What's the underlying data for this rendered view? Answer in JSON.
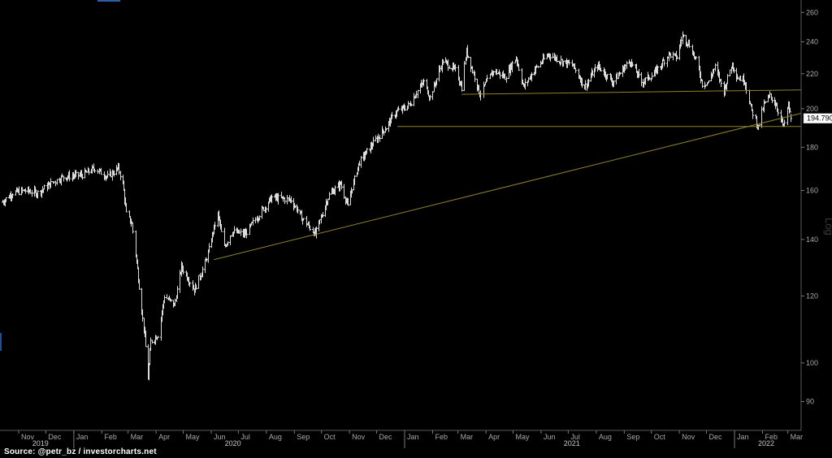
{
  "source_text": "Source: @petr_bz / investorcharts.net",
  "last_value_label": "194.790",
  "scale_label": "Log",
  "chart_data": {
    "type": "ohlc",
    "scale": "log",
    "ylim": [
      86,
      266
    ],
    "y_ticks": [
      90,
      100,
      120,
      140,
      160,
      180,
      200,
      220,
      240,
      260
    ],
    "x_range": [
      "2019-10-14",
      "2022-03-04"
    ],
    "month_ticks": [
      {
        "label": "Nov",
        "date": "2019-11-01"
      },
      {
        "label": "Dec",
        "date": "2019-12-01"
      },
      {
        "label": "Jan",
        "date": "2020-01-01"
      },
      {
        "label": "Feb",
        "date": "2020-02-01"
      },
      {
        "label": "Mar",
        "date": "2020-03-01"
      },
      {
        "label": "Apr",
        "date": "2020-04-01"
      },
      {
        "label": "May",
        "date": "2020-05-01"
      },
      {
        "label": "Jun",
        "date": "2020-06-01"
      },
      {
        "label": "Jul",
        "date": "2020-07-01"
      },
      {
        "label": "Aug",
        "date": "2020-08-01"
      },
      {
        "label": "Sep",
        "date": "2020-09-01"
      },
      {
        "label": "Oct",
        "date": "2020-10-01"
      },
      {
        "label": "Nov",
        "date": "2020-11-01"
      },
      {
        "label": "Dec",
        "date": "2020-12-01"
      },
      {
        "label": "Jan",
        "date": "2021-01-01"
      },
      {
        "label": "Feb",
        "date": "2021-02-01"
      },
      {
        "label": "Mar",
        "date": "2021-03-01"
      },
      {
        "label": "Apr",
        "date": "2021-04-01"
      },
      {
        "label": "May",
        "date": "2021-05-01"
      },
      {
        "label": "Jun",
        "date": "2021-06-01"
      },
      {
        "label": "Jul",
        "date": "2021-07-01"
      },
      {
        "label": "Aug",
        "date": "2021-08-01"
      },
      {
        "label": "Sep",
        "date": "2021-09-01"
      },
      {
        "label": "Oct",
        "date": "2021-10-01"
      },
      {
        "label": "Nov",
        "date": "2021-11-01"
      },
      {
        "label": "Dec",
        "date": "2021-12-01"
      },
      {
        "label": "Jan",
        "date": "2022-01-01"
      },
      {
        "label": "Feb",
        "date": "2022-02-01"
      },
      {
        "label": "Mar",
        "date": "2022-03-01"
      }
    ],
    "year_labels": [
      {
        "label": "2019",
        "date": "2019-11-25"
      },
      {
        "label": "2020",
        "date": "2020-06-25"
      },
      {
        "label": "2021",
        "date": "2021-07-05"
      },
      {
        "label": "2022",
        "date": "2022-02-05"
      }
    ],
    "year_separators": [
      "2020-01-01",
      "2021-01-01",
      "2022-01-01"
    ],
    "last_value": 194.79,
    "price_path": [
      [
        "2019-10-14",
        155
      ],
      [
        "2019-10-25",
        159
      ],
      [
        "2019-11-08",
        160
      ],
      [
        "2019-11-22",
        159
      ],
      [
        "2019-12-06",
        163
      ],
      [
        "2019-12-20",
        166
      ],
      [
        "2020-01-10",
        167
      ],
      [
        "2020-01-24",
        170
      ],
      [
        "2020-02-07",
        166
      ],
      [
        "2020-02-19",
        170
      ],
      [
        "2020-02-24",
        163
      ],
      [
        "2020-02-28",
        150
      ],
      [
        "2020-03-05",
        146
      ],
      [
        "2020-03-12",
        126
      ],
      [
        "2020-03-18",
        110
      ],
      [
        "2020-03-23",
        96
      ],
      [
        "2020-03-26",
        106
      ],
      [
        "2020-04-03",
        108
      ],
      [
        "2020-04-10",
        120
      ],
      [
        "2020-04-21",
        117
      ],
      [
        "2020-04-29",
        130
      ],
      [
        "2020-05-13",
        122
      ],
      [
        "2020-05-26",
        132
      ],
      [
        "2020-06-08",
        150
      ],
      [
        "2020-06-15",
        137
      ],
      [
        "2020-06-24",
        143
      ],
      [
        "2020-07-08",
        142
      ],
      [
        "2020-07-24",
        150
      ],
      [
        "2020-08-07",
        157
      ],
      [
        "2020-08-28",
        156
      ],
      [
        "2020-09-10",
        148
      ],
      [
        "2020-09-24",
        142
      ],
      [
        "2020-10-09",
        158
      ],
      [
        "2020-10-22",
        163
      ],
      [
        "2020-10-30",
        153
      ],
      [
        "2020-11-06",
        165
      ],
      [
        "2020-11-12",
        173
      ],
      [
        "2020-11-27",
        182
      ],
      [
        "2020-12-11",
        190
      ],
      [
        "2020-12-22",
        198
      ],
      [
        "2021-01-06",
        202
      ],
      [
        "2021-01-15",
        210
      ],
      [
        "2021-01-22",
        215
      ],
      [
        "2021-01-29",
        206
      ],
      [
        "2021-02-12",
        228
      ],
      [
        "2021-02-26",
        222
      ],
      [
        "2021-03-05",
        212
      ],
      [
        "2021-03-10",
        234
      ],
      [
        "2021-03-18",
        220
      ],
      [
        "2021-03-25",
        208
      ],
      [
        "2021-04-09",
        222
      ],
      [
        "2021-04-22",
        218
      ],
      [
        "2021-05-04",
        230
      ],
      [
        "2021-05-12",
        212
      ],
      [
        "2021-05-24",
        222
      ],
      [
        "2021-06-09",
        232
      ],
      [
        "2021-06-22",
        228
      ],
      [
        "2021-07-06",
        225
      ],
      [
        "2021-07-19",
        212
      ],
      [
        "2021-08-02",
        225
      ],
      [
        "2021-08-19",
        215
      ],
      [
        "2021-09-07",
        228
      ],
      [
        "2021-09-20",
        215
      ],
      [
        "2021-10-04",
        220
      ],
      [
        "2021-10-20",
        232
      ],
      [
        "2021-10-29",
        230
      ],
      [
        "2021-11-04",
        244
      ],
      [
        "2021-11-12",
        238
      ],
      [
        "2021-11-19",
        228
      ],
      [
        "2021-11-26",
        214
      ],
      [
        "2021-12-03",
        215
      ],
      [
        "2021-12-10",
        224
      ],
      [
        "2021-12-20",
        210
      ],
      [
        "2021-12-29",
        226
      ],
      [
        "2022-01-04",
        218
      ],
      [
        "2022-01-12",
        216
      ],
      [
        "2022-01-19",
        200
      ],
      [
        "2022-01-27",
        190
      ],
      [
        "2022-02-02",
        202
      ],
      [
        "2022-02-09",
        207
      ],
      [
        "2022-02-16",
        202
      ],
      [
        "2022-02-24",
        190
      ],
      [
        "2022-03-01",
        202
      ],
      [
        "2022-03-04",
        194.79
      ]
    ],
    "trend_lines": [
      {
        "from": [
          "2020-06-04",
          132.5
        ],
        "to": [
          "2022-03-04",
          197.5
        ]
      },
      {
        "from": [
          "2020-12-24",
          190.5
        ],
        "to": [
          "2022-03-04",
          190.5
        ]
      },
      {
        "from": [
          "2021-03-05",
          208
        ],
        "to": [
          "2022-03-04",
          210.5
        ]
      }
    ]
  }
}
